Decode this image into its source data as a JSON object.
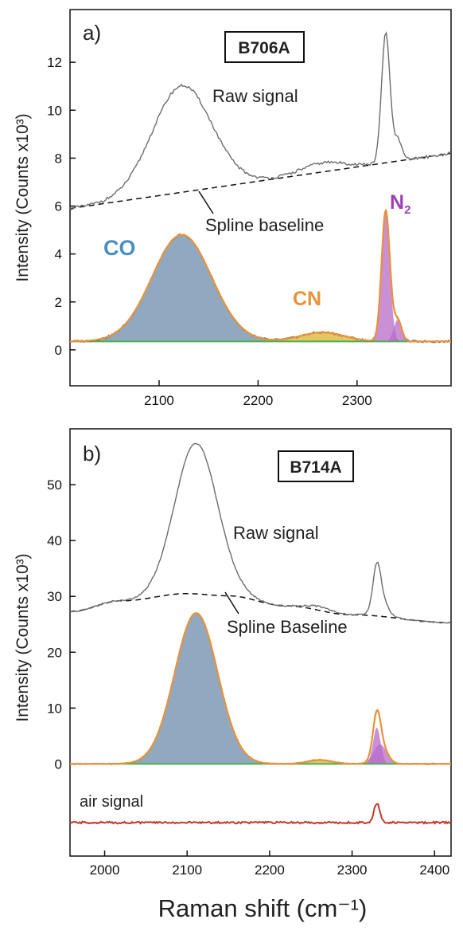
{
  "colors": {
    "raw": "#6d6d6d",
    "baseline": "#111111",
    "fit": "#e8923a",
    "co_fill": "#8aa4bd",
    "cn_fill": "#e3c45a",
    "n2_fill": "#b76bc8",
    "zero_line": "#4caf50",
    "air": "#c0392b",
    "co_label": "#4a8fc4",
    "cn_label": "#e8923a",
    "n2_label": "#9b3fb5"
  },
  "chart_data": [
    {
      "type": "line",
      "panel_label": "a)",
      "sample": "B706A",
      "ylabel": "Intensity (Counts x10³)",
      "xlim": [
        2010,
        2395
      ],
      "ylim": [
        -1.5,
        14.2
      ],
      "yticks": [
        "0",
        "2",
        "4",
        "6",
        "8",
        "10",
        "12"
      ],
      "xticks": [
        "2100",
        "2200",
        "2300"
      ],
      "annotations": {
        "raw": "Raw signal",
        "baseline": "Spline baseline",
        "co": "CO",
        "cn": "CN",
        "n2": "N",
        "n2_sub": "2"
      },
      "raw_offset": 5.9,
      "baseline_line": [
        [
          2010,
          5.9
        ],
        [
          2395,
          8.2
        ]
      ],
      "peaks": [
        {
          "species": "CO",
          "center": 2123,
          "height": 4.45,
          "width": 30
        },
        {
          "species": "CN",
          "center": 2265,
          "height": 0.38,
          "width": 22
        },
        {
          "species": "N2",
          "center": 2329,
          "height": 5.45,
          "width": 4.2
        },
        {
          "species": "N2",
          "center": 2341,
          "height": 0.9,
          "width": 4
        }
      ],
      "zero_level": 0.35
    },
    {
      "type": "line",
      "panel_label": "b)",
      "sample": "B714A",
      "ylabel": "Intensity (Counts x10³)",
      "xlabel": "Raman shift (cm⁻¹)",
      "xlim": [
        1958,
        2420
      ],
      "ylim": [
        -16.5,
        60
      ],
      "yticks": [
        "0",
        "10",
        "20",
        "30",
        "40",
        "50"
      ],
      "xticks": [
        "2000",
        "2100",
        "2200",
        "2300",
        "2400"
      ],
      "annotations": {
        "raw": "Raw signal",
        "baseline": "Spline Baseline",
        "air": "air signal"
      },
      "baseline_curve": [
        [
          1958,
          27.3
        ],
        [
          2020,
          29.2
        ],
        [
          2100,
          30.5
        ],
        [
          2150,
          30.1
        ],
        [
          2220,
          28.3
        ],
        [
          2300,
          26.7
        ],
        [
          2420,
          25.3
        ]
      ],
      "peaks": [
        {
          "species": "CO",
          "center": 2111,
          "height": 27.0,
          "width": 26
        },
        {
          "species": "CN",
          "center": 2261,
          "height": 0.7,
          "width": 15
        },
        {
          "species": "N2",
          "center": 2330,
          "height": 6.5,
          "width": 4.5
        },
        {
          "species": "N2",
          "center": 2334,
          "height": 3.5,
          "width": 8
        }
      ],
      "air_signal": {
        "level": -10.5,
        "peak_center": 2330,
        "peak_height": 3.5
      }
    }
  ]
}
